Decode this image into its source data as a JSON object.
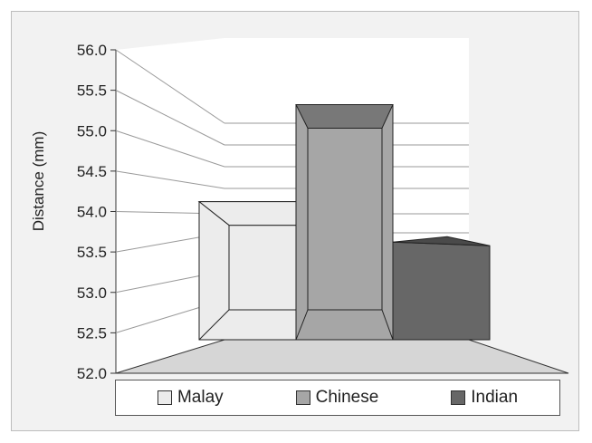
{
  "chart_data": {
    "type": "bar",
    "ylabel": "Distance (mm)",
    "ylim": [
      52.0,
      56.0
    ],
    "yticks": [
      "52.0",
      "52.5",
      "53.0",
      "53.5",
      "54.0",
      "54.5",
      "55.0",
      "55.5",
      "56.0"
    ],
    "grid": true,
    "legend_position": "bottom",
    "categories": [
      "Malay",
      "Chinese",
      "Indian"
    ],
    "values": [
      54.1,
      55.3,
      53.6
    ],
    "colors": [
      "#ececec",
      "#a6a6a6",
      "#676767"
    ]
  },
  "legend": {
    "items": [
      {
        "label": "Malay",
        "color": "#ececec"
      },
      {
        "label": "Chinese",
        "color": "#a6a6a6"
      },
      {
        "label": "Indian",
        "color": "#676767"
      }
    ]
  }
}
